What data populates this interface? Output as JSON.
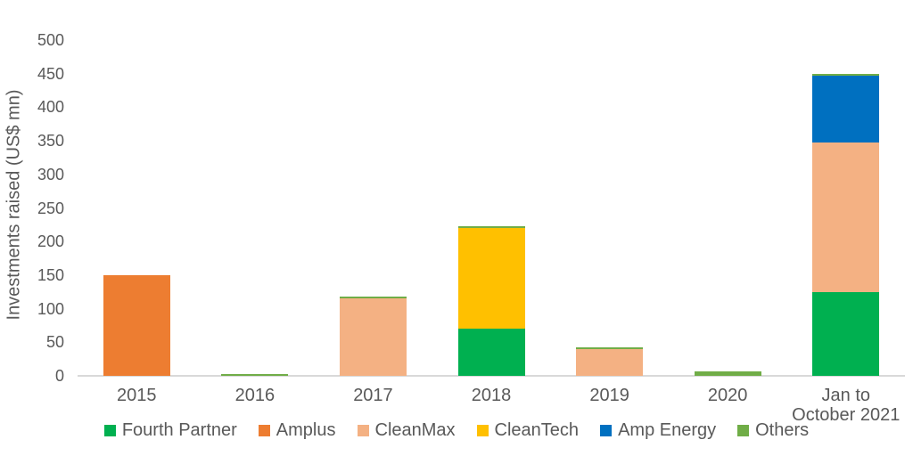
{
  "chart_data": {
    "type": "bar",
    "stacked": true,
    "title": "",
    "ylabel": "Investments raised (US$ mn)",
    "xlabel": "",
    "ylim": [
      0,
      500
    ],
    "yticks": [
      0,
      50,
      100,
      150,
      200,
      250,
      300,
      350,
      400,
      450,
      500
    ],
    "grid": false,
    "legend_position": "bottom",
    "axis_line_color": "#d9d9d9",
    "text_color": "#595959",
    "categories": [
      "2015",
      "2016",
      "2017",
      "2018",
      "2019",
      "2020",
      "Jan to October 2021"
    ],
    "series": [
      {
        "name": "Fourth Partner",
        "color": "#00B050",
        "values": [
          0,
          0,
          0,
          70,
          0,
          0,
          125
        ]
      },
      {
        "name": "Amplus",
        "color": "#ED7D31",
        "values": [
          150,
          0,
          0,
          0,
          0,
          0,
          0
        ]
      },
      {
        "name": "CleanMax",
        "color": "#F4B183",
        "values": [
          0,
          0,
          115,
          0,
          40,
          0,
          222
        ]
      },
      {
        "name": "CleanTech",
        "color": "#FFC000",
        "values": [
          0,
          0,
          0,
          150,
          0,
          0,
          0
        ]
      },
      {
        "name": "Amp Energy",
        "color": "#0070C0",
        "values": [
          0,
          0,
          0,
          0,
          0,
          0,
          100
        ]
      },
      {
        "name": "Others",
        "color": "#70AD47",
        "values": [
          0,
          3,
          3,
          3,
          2,
          7,
          3
        ]
      }
    ]
  }
}
